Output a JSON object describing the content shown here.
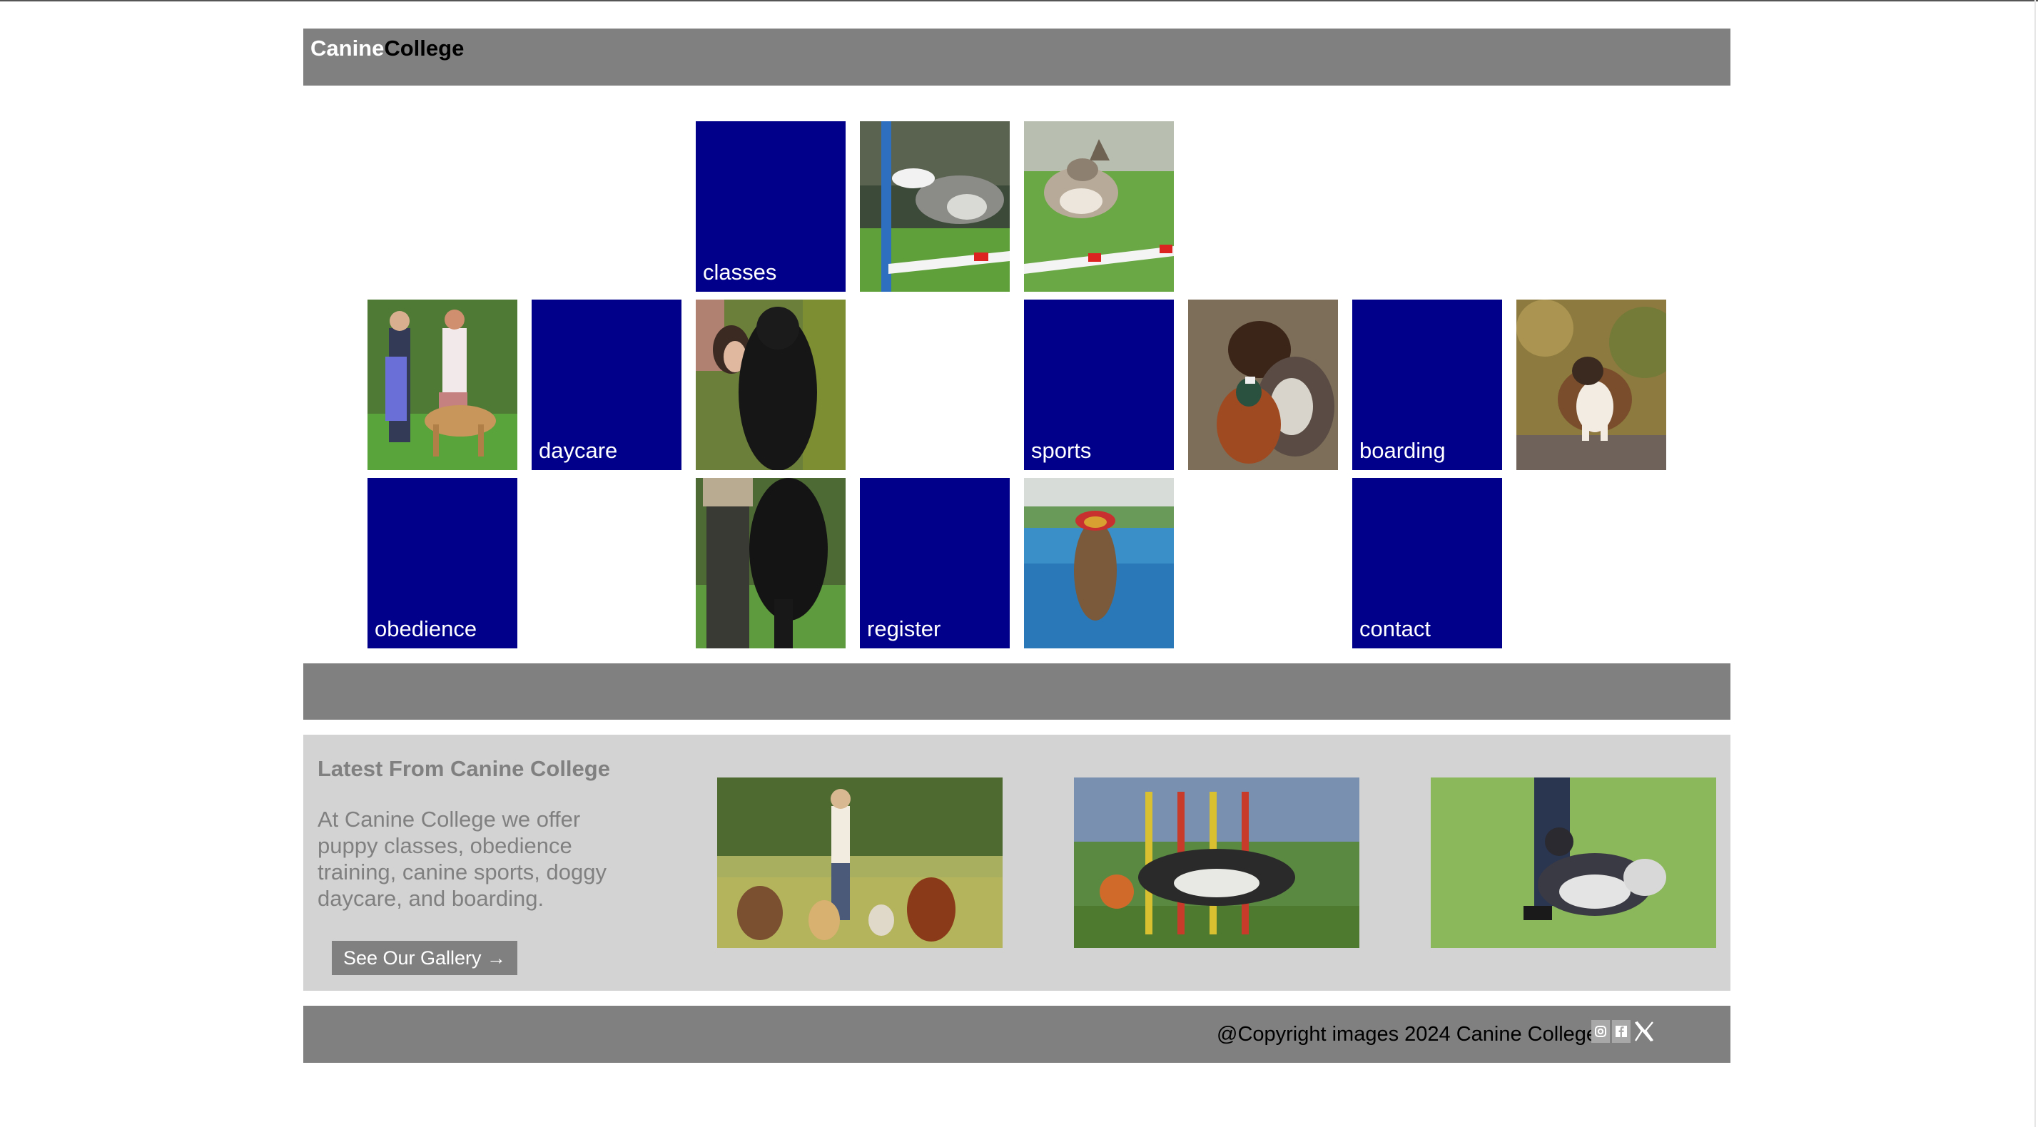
{
  "header": {
    "logo_part1": "Canine",
    "logo_part2": "College"
  },
  "nav": {
    "classes": "classes",
    "daycare": "daycare",
    "sports": "sports",
    "boarding": "boarding",
    "obedience": "obedience",
    "register": "register",
    "contact": "contact"
  },
  "latest": {
    "title": "Latest From Canine College",
    "text": "At Canine College we offer puppy classes, obedience training, canine sports, doggy daycare, and boarding.",
    "button_label": "See Our Gallery →"
  },
  "footer": {
    "copyright": "@Copyright images 2024 Canine College",
    "icons": [
      "instagram-icon",
      "facebook-icon",
      "x-icon"
    ]
  },
  "colors": {
    "bar": "#808080",
    "nav_tile": "#00008b",
    "latest_bg": "#d3d3d3",
    "muted_text": "#808080"
  }
}
